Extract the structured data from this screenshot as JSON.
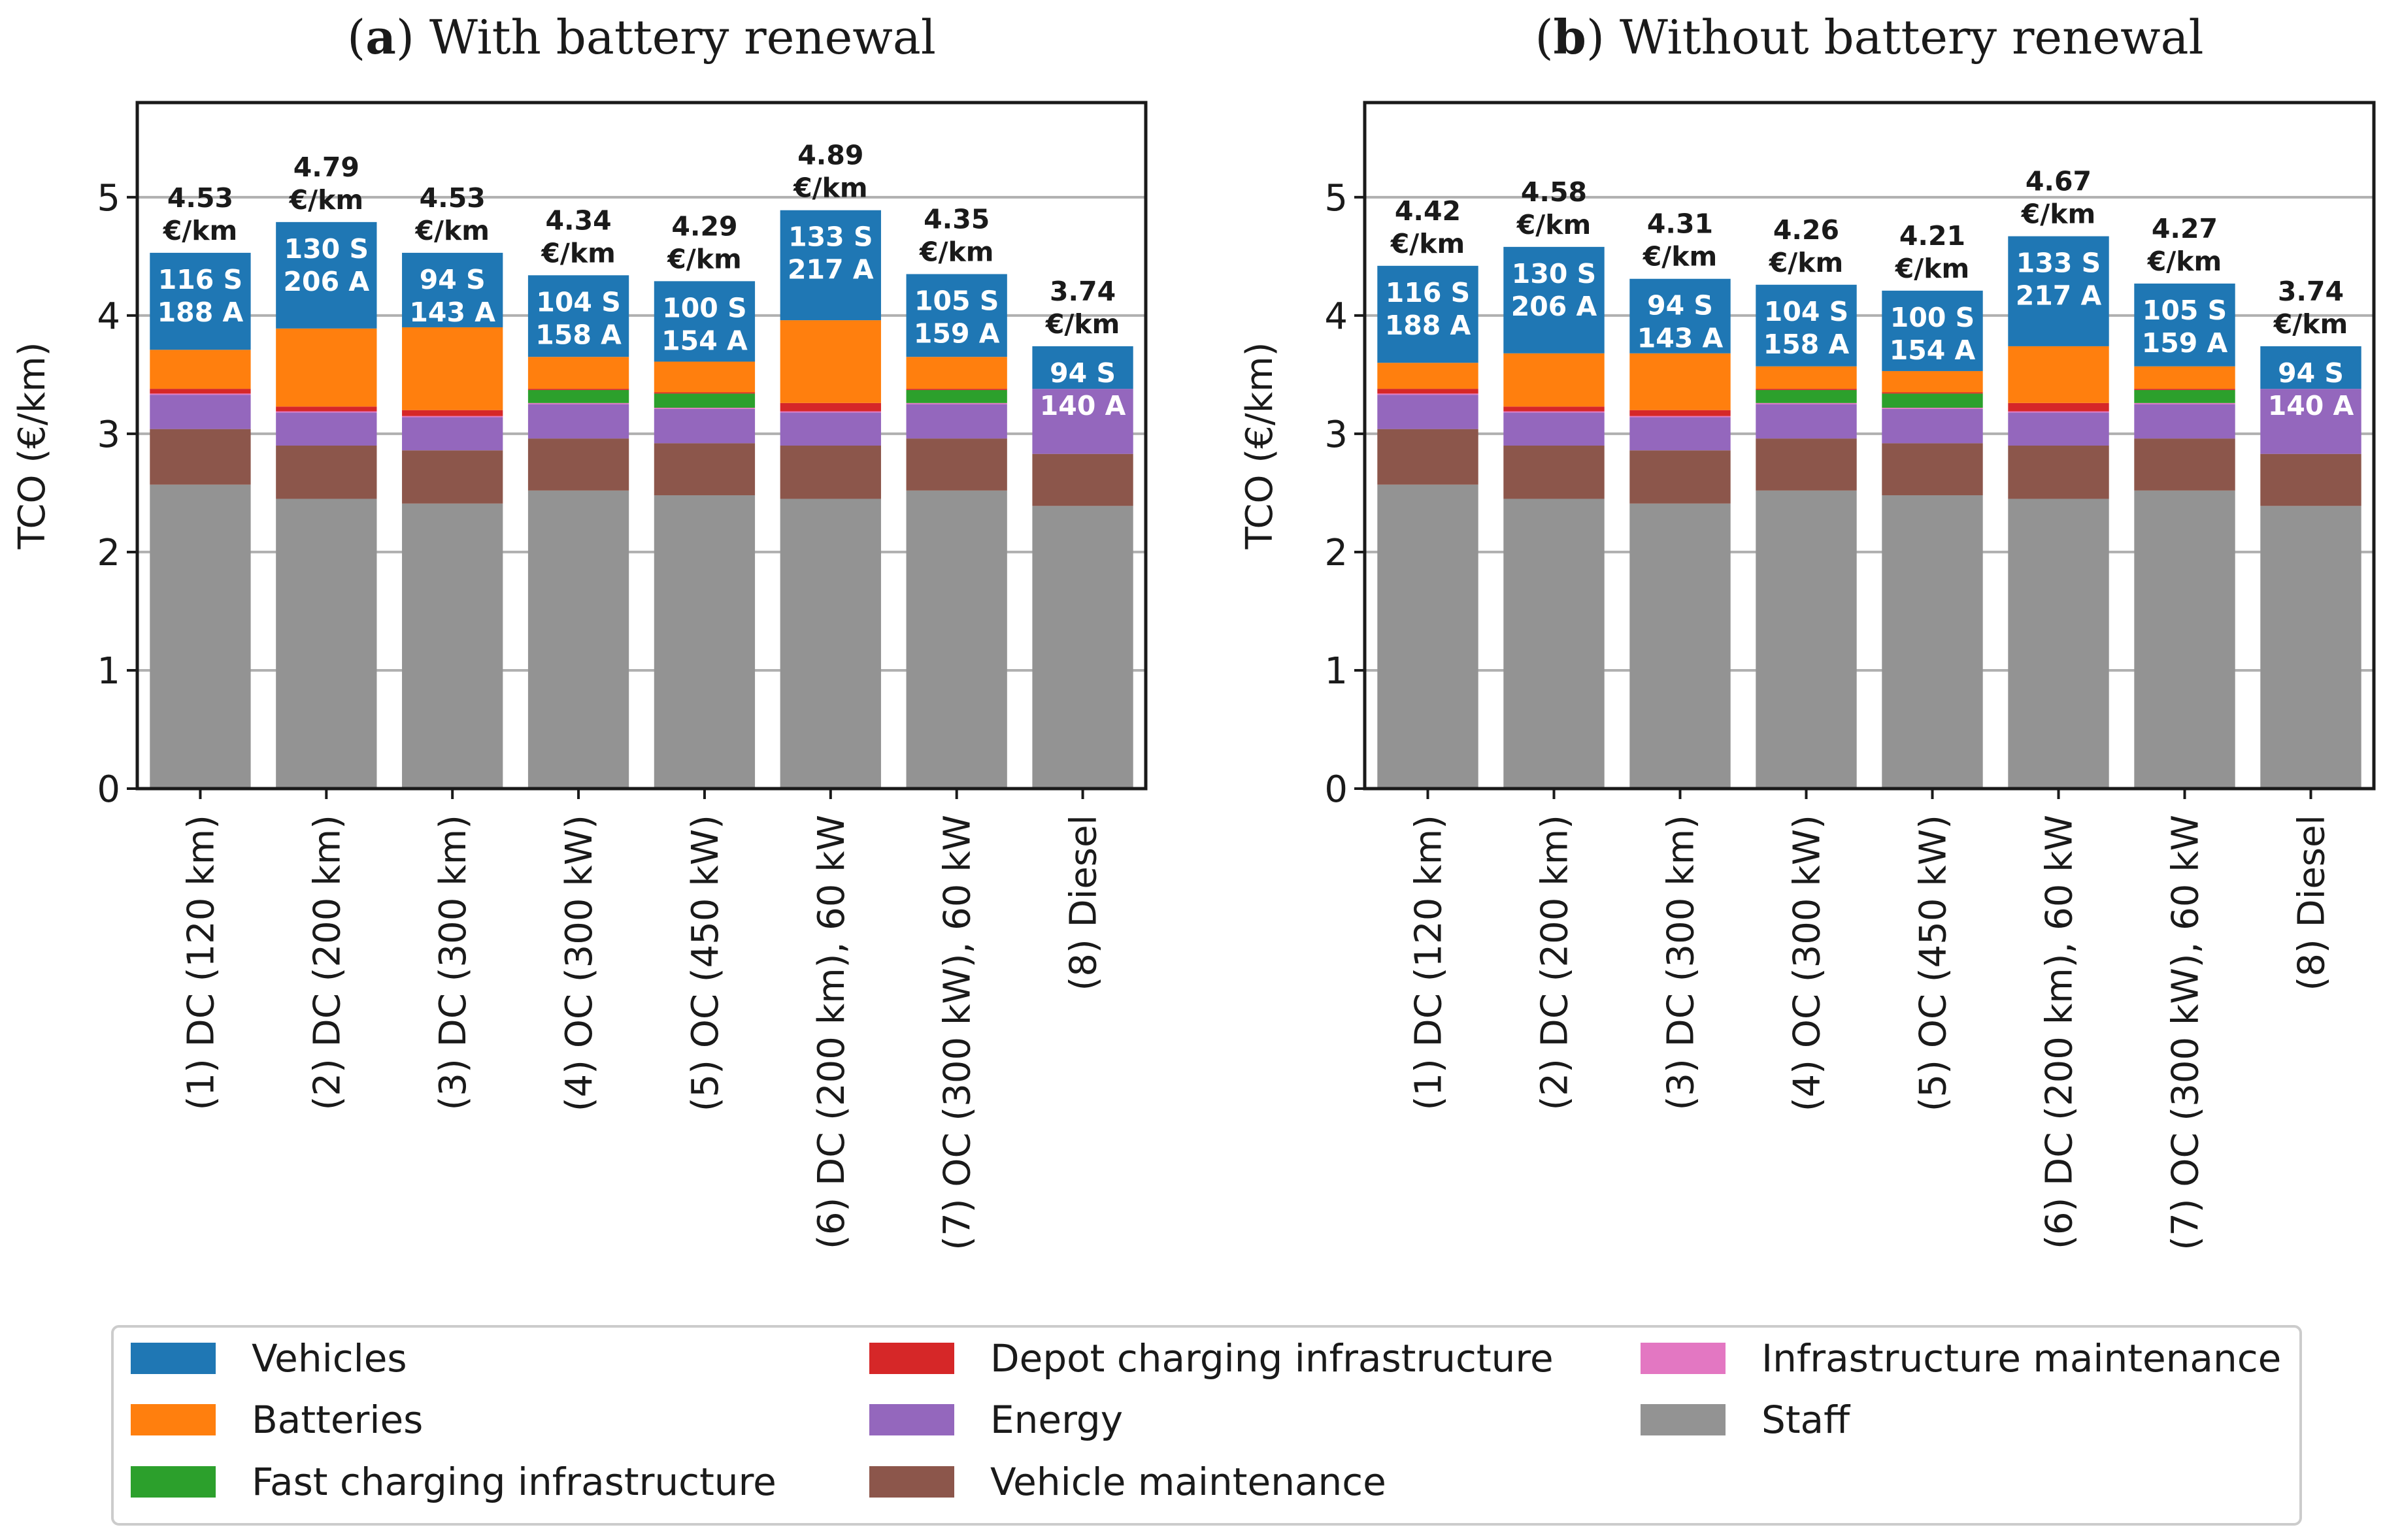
{
  "chart_data": [
    {
      "type": "bar",
      "stacked": true,
      "panel_label": "a",
      "title": "With battery renewal",
      "ylabel": "TCO (€/km)",
      "ylim": [
        0,
        5.8
      ],
      "yticks": [
        0,
        1,
        2,
        3,
        4,
        5
      ],
      "grid": true,
      "categories": [
        "(1) DC (120 km)",
        "(2) DC (200 km)",
        "(3) DC (300 km)",
        "(4) OC (300 kW)",
        "(5) OC (450 kW)",
        "(6) DC (200 km), 60 kW",
        "(7) OC (300 kW), 60 kW",
        "(8) Diesel"
      ],
      "series": [
        {
          "name": "Staff",
          "values": [
            2.57,
            2.45,
            2.41,
            2.52,
            2.48,
            2.45,
            2.52,
            2.39
          ]
        },
        {
          "name": "Vehicle maintenance",
          "values": [
            0.47,
            0.45,
            0.45,
            0.44,
            0.44,
            0.45,
            0.44,
            0.44
          ]
        },
        {
          "name": "Energy",
          "values": [
            0.29,
            0.28,
            0.28,
            0.29,
            0.29,
            0.28,
            0.29,
            0.55
          ]
        },
        {
          "name": "Infrastructure maintenance",
          "values": [
            0.01,
            0.01,
            0.01,
            0.01,
            0.01,
            0.01,
            0.01,
            0
          ]
        },
        {
          "name": "Fast charging infrastructure",
          "values": [
            0,
            0,
            0,
            0.11,
            0.12,
            0,
            0.11,
            0
          ]
        },
        {
          "name": "Depot charging infrastructure",
          "values": [
            0.04,
            0.04,
            0.05,
            0.01,
            0.01,
            0.07,
            0.01,
            0
          ]
        },
        {
          "name": "Batteries",
          "values": [
            0.33,
            0.66,
            0.7,
            0.27,
            0.26,
            0.7,
            0.27,
            0
          ]
        },
        {
          "name": "Vehicles",
          "values": [
            0.82,
            0.9,
            0.63,
            0.69,
            0.68,
            0.93,
            0.7,
            0.36
          ]
        }
      ],
      "totals": [
        "4.53",
        "4.79",
        "4.53",
        "4.34",
        "4.29",
        "4.89",
        "4.35",
        "3.74"
      ],
      "unit_label": "€/km",
      "fleet_labels": [
        [
          "116 S",
          "188 A"
        ],
        [
          "130 S",
          "206 A"
        ],
        [
          "94 S",
          "143 A"
        ],
        [
          "104 S",
          "158 A"
        ],
        [
          "100 S",
          "154 A"
        ],
        [
          "133 S",
          "217 A"
        ],
        [
          "105 S",
          "159 A"
        ],
        [
          "94 S",
          "140 A"
        ]
      ]
    },
    {
      "type": "bar",
      "stacked": true,
      "panel_label": "b",
      "title": "Without battery renewal",
      "ylabel": "TCO (€/km)",
      "ylim": [
        0,
        5.8
      ],
      "yticks": [
        0,
        1,
        2,
        3,
        4,
        5
      ],
      "grid": true,
      "categories": [
        "(1) DC (120 km)",
        "(2) DC (200 km)",
        "(3) DC (300 km)",
        "(4) OC (300 kW)",
        "(5) OC (450 kW)",
        "(6) DC (200 km), 60 kW",
        "(7) OC (300 kW), 60 kW",
        "(8) Diesel"
      ],
      "series": [
        {
          "name": "Staff",
          "values": [
            2.57,
            2.45,
            2.41,
            2.52,
            2.48,
            2.45,
            2.52,
            2.39
          ]
        },
        {
          "name": "Vehicle maintenance",
          "values": [
            0.47,
            0.45,
            0.45,
            0.44,
            0.44,
            0.45,
            0.44,
            0.44
          ]
        },
        {
          "name": "Energy",
          "values": [
            0.29,
            0.28,
            0.28,
            0.29,
            0.29,
            0.28,
            0.29,
            0.55
          ]
        },
        {
          "name": "Infrastructure maintenance",
          "values": [
            0.01,
            0.01,
            0.01,
            0.01,
            0.01,
            0.01,
            0.01,
            0
          ]
        },
        {
          "name": "Fast charging infrastructure",
          "values": [
            0,
            0,
            0,
            0.11,
            0.12,
            0,
            0.11,
            0
          ]
        },
        {
          "name": "Depot charging infrastructure",
          "values": [
            0.04,
            0.04,
            0.05,
            0.01,
            0.01,
            0.07,
            0.01,
            0
          ]
        },
        {
          "name": "Batteries",
          "values": [
            0.22,
            0.45,
            0.48,
            0.19,
            0.18,
            0.48,
            0.19,
            0
          ]
        },
        {
          "name": "Vehicles",
          "values": [
            0.82,
            0.9,
            0.63,
            0.69,
            0.68,
            0.93,
            0.7,
            0.36
          ]
        }
      ],
      "totals": [
        "4.42",
        "4.58",
        "4.31",
        "4.26",
        "4.21",
        "4.67",
        "4.27",
        "3.74"
      ],
      "unit_label": "€/km",
      "fleet_labels": [
        [
          "116 S",
          "188 A"
        ],
        [
          "130 S",
          "206 A"
        ],
        [
          "94 S",
          "143 A"
        ],
        [
          "104 S",
          "158 A"
        ],
        [
          "100 S",
          "154 A"
        ],
        [
          "133 S",
          "217 A"
        ],
        [
          "105 S",
          "159 A"
        ],
        [
          "94 S",
          "140 A"
        ]
      ]
    }
  ],
  "legend": {
    "placement": "bottom",
    "items": [
      {
        "name": "Vehicles",
        "color": "#1f77b4"
      },
      {
        "name": "Batteries",
        "color": "#ff7f0e"
      },
      {
        "name": "Fast charging infrastructure",
        "color": "#2ca02c"
      },
      {
        "name": "Depot charging infrastructure",
        "color": "#d62728"
      },
      {
        "name": "Energy",
        "color": "#9467bd"
      },
      {
        "name": "Vehicle maintenance",
        "color": "#8c564b"
      },
      {
        "name": "Infrastructure maintenance",
        "color": "#e377c2"
      },
      {
        "name": "Staff",
        "color": "#939393"
      }
    ]
  }
}
